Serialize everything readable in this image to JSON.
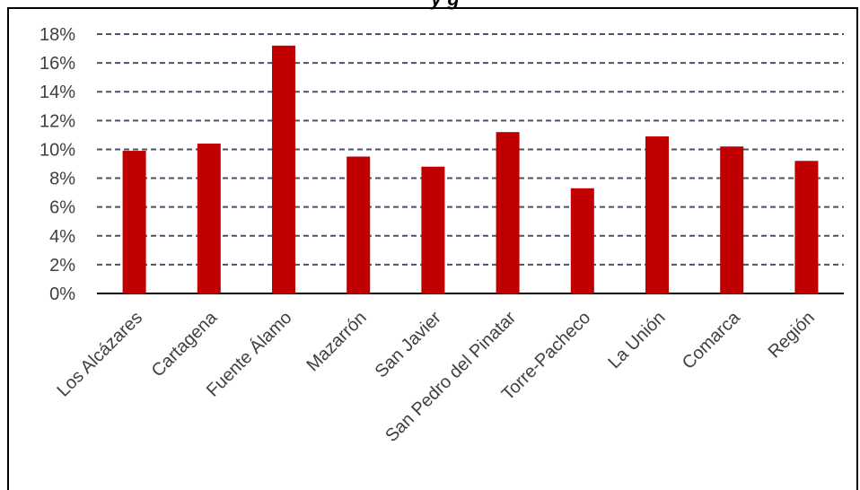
{
  "chart_data": {
    "type": "bar",
    "title_fragment": "y          g",
    "categories": [
      "Los Alcázares",
      "Cartagena",
      "Fuente Álamo",
      "Mazarrón",
      "San Javier",
      "San Pedro del Pinatar",
      "Torre-Pacheco",
      "La Unión",
      "Comarca",
      "Región"
    ],
    "values": [
      9.9,
      10.4,
      17.2,
      9.5,
      8.8,
      11.2,
      7.3,
      10.9,
      10.2,
      9.2
    ],
    "ylim": [
      0,
      18
    ],
    "yticks": [
      0,
      2,
      4,
      6,
      8,
      10,
      12,
      14,
      16,
      18
    ],
    "ytick_labels": [
      "0%",
      "2%",
      "4%",
      "6%",
      "8%",
      "10%",
      "12%",
      "14%",
      "16%",
      "18%"
    ],
    "bar_color": "#c00000",
    "grid": true,
    "grid_color": "#44546a"
  }
}
